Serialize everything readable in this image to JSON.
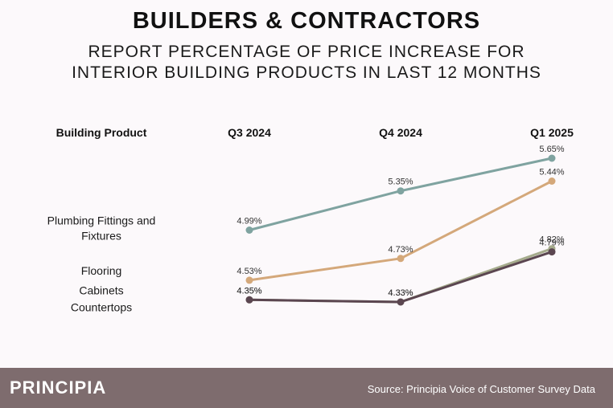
{
  "header": {
    "title": "BUILDERS & CONTRACTORS",
    "subtitle_line1": "REPORT PERCENTAGE OF PRICE INCREASE FOR",
    "subtitle_line2": "INTERIOR BUILDING PRODUCTS IN LAST 12 MONTHS"
  },
  "footer": {
    "brand": "PRINCIPIA",
    "source": "Source: Principia Voice of Customer Survey Data"
  },
  "chart_data": {
    "type": "line",
    "row_header": "Building Product",
    "x": [
      "Q3 2024",
      "Q4 2024",
      "Q1 2025"
    ],
    "series": [
      {
        "name": "Plumbing Fittings and Fixtures",
        "label_lines": [
          "Plumbing Fittings and",
          "Fixtures"
        ],
        "values": [
          4.99,
          5.35,
          5.65
        ],
        "labels": [
          "4.99%",
          "5.35%",
          "5.65%"
        ],
        "color": "#7fa3a0"
      },
      {
        "name": "Flooring",
        "label_lines": [
          "Flooring"
        ],
        "values": [
          4.53,
          4.73,
          5.44
        ],
        "labels": [
          "4.53%",
          "4.73%",
          "5.44%"
        ],
        "color": "#d4a87a"
      },
      {
        "name": "Cabinets",
        "label_lines": [
          "Cabinets"
        ],
        "values": [
          4.35,
          4.33,
          4.82
        ],
        "labels": [
          "4.35%",
          "4.33%",
          "4.82%"
        ],
        "color": "#a5ab8c"
      },
      {
        "name": "Countertops",
        "label_lines": [
          "Countertops"
        ],
        "values": [
          4.35,
          4.33,
          4.79
        ],
        "labels": [
          "4.35%",
          "4.33%",
          "4.79%"
        ],
        "color": "#5b4650"
      }
    ]
  }
}
